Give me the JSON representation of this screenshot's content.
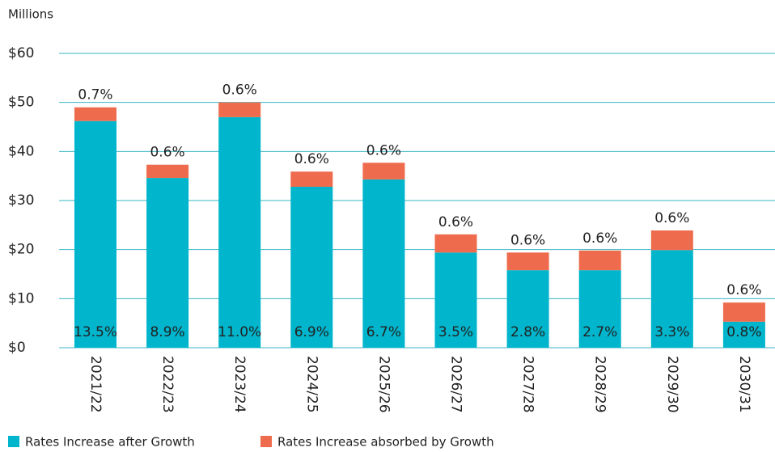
{
  "chart_data": {
    "type": "stacked_bar",
    "y_axis_label": "Millions",
    "categories": [
      "2021/22",
      "2022/23",
      "2023/24",
      "2024/25",
      "2025/26",
      "2026/27",
      "2027/28",
      "2028/29",
      "2029/30",
      "2030/31"
    ],
    "series": [
      {
        "name": "Rates Increase after Growth",
        "color": "#00b5cc",
        "values": [
          46.2,
          34.6,
          47.0,
          32.8,
          34.3,
          19.4,
          15.8,
          15.8,
          19.9,
          5.3
        ],
        "point_labels": [
          "13.5%",
          "8.9%",
          "11.0%",
          "6.9%",
          "6.7%",
          "3.5%",
          "2.8%",
          "2.7%",
          "3.3%",
          "0.8%"
        ]
      },
      {
        "name": "Rates Increase absorbed by Growth",
        "color": "#ee6c4d",
        "values": [
          2.8,
          2.7,
          3.0,
          3.1,
          3.4,
          3.7,
          3.6,
          4.0,
          4.0,
          3.9
        ],
        "point_labels": [
          "0.7%",
          "0.6%",
          "0.6%",
          "0.6%",
          "0.6%",
          "0.6%",
          "0.6%",
          "0.6%",
          "0.6%",
          "0.6%"
        ]
      }
    ],
    "ylim": [
      0,
      60
    ],
    "yticks": [
      {
        "value": 0,
        "label": "$0"
      },
      {
        "value": 10,
        "label": "$10"
      },
      {
        "value": 20,
        "label": "$20"
      },
      {
        "value": 30,
        "label": "$30"
      },
      {
        "value": 40,
        "label": "$40"
      },
      {
        "value": 50,
        "label": "$50"
      },
      {
        "value": 60,
        "label": "$60"
      }
    ],
    "grid": true,
    "legend": "bottom"
  }
}
